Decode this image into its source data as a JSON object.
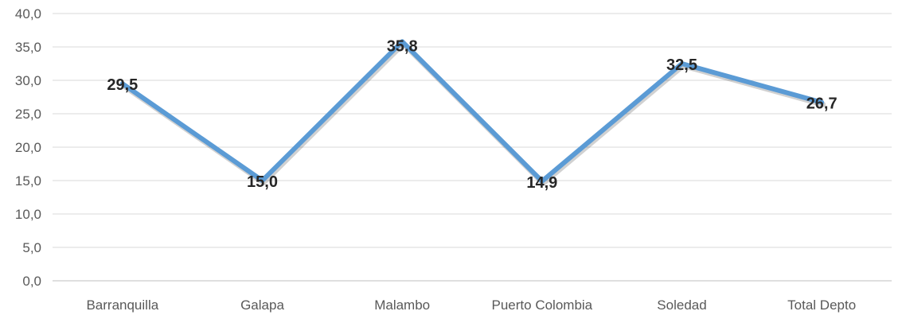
{
  "chart_data": {
    "type": "line",
    "title": "",
    "xlabel": "",
    "ylabel": "",
    "categories": [
      "Barranquilla",
      "Galapa",
      "Malambo",
      "Puerto Colombia",
      "Soledad",
      "Total Depto"
    ],
    "series": [
      {
        "values": [
          29.5,
          15.0,
          35.8,
          14.9,
          32.5,
          26.7
        ],
        "value_labels": [
          "29,5",
          "15,0",
          "35,8",
          "14,9",
          "32,5",
          "26,7"
        ],
        "color": "#5b9bd5"
      }
    ],
    "ylim": [
      0,
      40
    ],
    "yticks": [
      0,
      5,
      10,
      15,
      20,
      25,
      30,
      35,
      40
    ],
    "ytick_labels": [
      "0,0",
      "5,0",
      "10,0",
      "15,0",
      "20,0",
      "25,0",
      "30,0",
      "35,0",
      "40,0"
    ],
    "grid": true,
    "legend": "none"
  }
}
